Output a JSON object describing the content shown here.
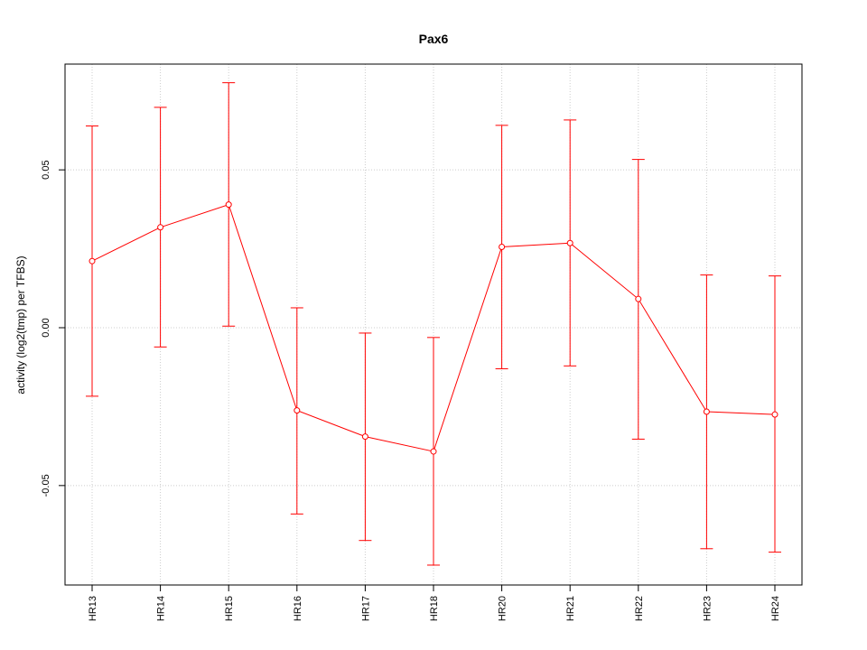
{
  "chart_data": {
    "type": "line",
    "title": "Pax6",
    "xlabel": "",
    "ylabel": "activity (log2(tmp) per TFBS)",
    "categories": [
      "HR13",
      "HR14",
      "HR15",
      "HR16",
      "HR17",
      "HR18",
      "HR20",
      "HR21",
      "HR22",
      "HR23",
      "HR24"
    ],
    "series": [
      {
        "values": [
          0.0211,
          0.0318,
          0.039,
          -0.0262,
          -0.0345,
          -0.0392,
          0.0256,
          0.0268,
          0.0091,
          -0.0266,
          -0.0275
        ],
        "upper": [
          0.0639,
          0.0698,
          0.0776,
          0.0063,
          -0.0017,
          -0.0031,
          0.0641,
          0.0658,
          0.0533,
          0.0167,
          0.0164
        ],
        "lower": [
          -0.0217,
          -0.0061,
          0.0005,
          -0.059,
          -0.0674,
          -0.0752,
          -0.013,
          -0.0121,
          -0.0353,
          -0.07,
          -0.0711
        ],
        "color": "#ff0000"
      }
    ],
    "ylim": [
      -0.0815,
      0.0835
    ],
    "yticks": [
      -0.05,
      0.0,
      0.05
    ],
    "ytick_labels": [
      "-0.05",
      "0.00",
      "0.05"
    ],
    "grid": true,
    "grid_color": "#cccccc",
    "line_color": "#ff0000"
  }
}
